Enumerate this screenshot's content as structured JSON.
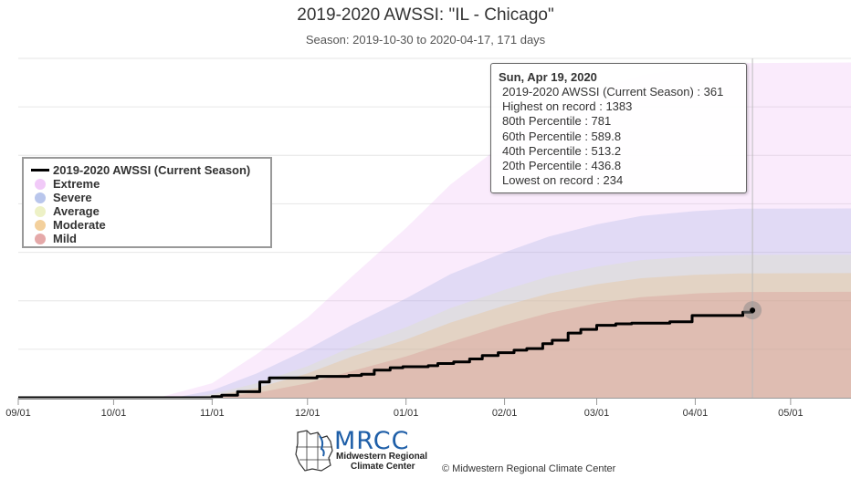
{
  "header": {
    "title": "2019-2020 AWSSI: \"IL - Chicago\"",
    "subtitle": "Season: 2019-10-30 to 2020-04-17, 171 days"
  },
  "legend": {
    "items": [
      {
        "label": "2019-2020 AWSSI (Current Season)",
        "color": "#000000",
        "kind": "line"
      },
      {
        "label": "Extreme",
        "color": "#e7a6f3",
        "kind": "dot"
      },
      {
        "label": "Severe",
        "color": "#8aa0e0",
        "kind": "dot"
      },
      {
        "label": "Average",
        "color": "#e1e8a0",
        "kind": "dot"
      },
      {
        "label": "Moderate",
        "color": "#ebb15a",
        "kind": "dot"
      },
      {
        "label": "Mild",
        "color": "#d37070",
        "kind": "dot"
      }
    ]
  },
  "tooltip": {
    "date": "Sun, Apr 19, 2020",
    "rows": [
      "2019-2020 AWSSI (Current Season) : 361",
      "Highest on record : 1383",
      "80th Percentile : 781",
      "60th Percentile : 589.8",
      "40th Percentile : 513.2",
      "20th Percentile : 436.8",
      "Lowest on record : 234"
    ]
  },
  "logo": {
    "name": "MRCC",
    "line1": "Midwestern Regional",
    "line2": "Climate Center"
  },
  "credit": "© Midwestern Regional Climate Center",
  "chart_data": {
    "type": "area",
    "title": "2019-2020 AWSSI: \"IL - Chicago\"",
    "subtitle": "Season: 2019-10-30 to 2020-04-17, 171 days",
    "x_tick_labels": [
      "09/01",
      "10/01",
      "11/01",
      "12/01",
      "01/01",
      "02/01",
      "03/01",
      "04/01",
      "05/01"
    ],
    "x_tick_dates": [
      "2019-09-01",
      "2019-10-01",
      "2019-11-01",
      "2019-12-01",
      "2020-01-01",
      "2020-02-01",
      "2020-03-01",
      "2020-04-01",
      "2020-05-01"
    ],
    "xlim": [
      "2019-09-01",
      "2020-05-20"
    ],
    "ylim": [
      0,
      1400
    ],
    "y_gridlines": [
      0,
      200,
      400,
      600,
      800,
      1000,
      1200,
      1400
    ],
    "y_tick_labels_visible": false,
    "legend_position": "left",
    "crosshair_date": "2020-04-19",
    "highlight_point": {
      "date": "2020-04-19",
      "value": 361
    },
    "series": [
      {
        "name": "2019-2020 AWSSI (Current Season)",
        "color": "#000000",
        "points": [
          [
            "2019-09-01",
            0
          ],
          [
            "2019-10-30",
            0
          ],
          [
            "2019-11-01",
            5
          ],
          [
            "2019-11-04",
            10
          ],
          [
            "2019-11-07",
            10
          ],
          [
            "2019-11-09",
            25
          ],
          [
            "2019-11-12",
            25
          ],
          [
            "2019-11-16",
            65
          ],
          [
            "2019-11-19",
            82
          ],
          [
            "2019-11-24",
            82
          ],
          [
            "2019-12-04",
            88
          ],
          [
            "2019-12-14",
            92
          ],
          [
            "2019-12-18",
            97
          ],
          [
            "2019-12-22",
            114
          ],
          [
            "2019-12-27",
            124
          ],
          [
            "2019-12-31",
            128
          ],
          [
            "2020-01-08",
            132
          ],
          [
            "2020-01-11",
            141
          ],
          [
            "2020-01-16",
            148
          ],
          [
            "2020-01-21",
            160
          ],
          [
            "2020-01-25",
            174
          ],
          [
            "2020-01-30",
            186
          ],
          [
            "2020-02-04",
            196
          ],
          [
            "2020-02-08",
            203
          ],
          [
            "2020-02-13",
            223
          ],
          [
            "2020-02-16",
            237
          ],
          [
            "2020-02-21",
            267
          ],
          [
            "2020-02-25",
            282
          ],
          [
            "2020-03-01",
            299
          ],
          [
            "2020-03-07",
            305
          ],
          [
            "2020-03-12",
            308
          ],
          [
            "2020-03-24",
            313
          ],
          [
            "2020-03-31",
            339
          ],
          [
            "2020-04-12",
            339
          ],
          [
            "2020-04-16",
            353
          ],
          [
            "2020-04-19",
            361
          ]
        ]
      }
    ],
    "bands": [
      {
        "name": "Extreme",
        "color": "#e7a6f3",
        "upper": [
          [
            "2019-10-15",
            0
          ],
          [
            "2019-11-01",
            60
          ],
          [
            "2019-11-15",
            180
          ],
          [
            "2019-12-01",
            330
          ],
          [
            "2019-12-15",
            500
          ],
          [
            "2020-01-01",
            700
          ],
          [
            "2020-01-15",
            880
          ],
          [
            "2020-02-01",
            1050
          ],
          [
            "2020-02-15",
            1180
          ],
          [
            "2020-03-01",
            1270
          ],
          [
            "2020-03-15",
            1330
          ],
          [
            "2020-04-01",
            1365
          ],
          [
            "2020-04-15",
            1380
          ],
          [
            "2020-05-20",
            1383
          ]
        ]
      },
      {
        "name": "Severe",
        "color": "#8aa0e0",
        "upper": [
          [
            "2019-10-20",
            0
          ],
          [
            "2019-11-01",
            30
          ],
          [
            "2019-11-15",
            100
          ],
          [
            "2019-12-01",
            200
          ],
          [
            "2019-12-15",
            300
          ],
          [
            "2020-01-01",
            410
          ],
          [
            "2020-01-15",
            510
          ],
          [
            "2020-02-01",
            600
          ],
          [
            "2020-02-15",
            665
          ],
          [
            "2020-03-01",
            715
          ],
          [
            "2020-03-15",
            750
          ],
          [
            "2020-04-01",
            770
          ],
          [
            "2020-04-15",
            780
          ],
          [
            "2020-05-20",
            781
          ]
        ]
      },
      {
        "name": "Average",
        "color": "#e1e8a0",
        "upper": [
          [
            "2019-10-25",
            0
          ],
          [
            "2019-11-01",
            15
          ],
          [
            "2019-11-15",
            60
          ],
          [
            "2019-12-01",
            130
          ],
          [
            "2019-12-15",
            210
          ],
          [
            "2020-01-01",
            290
          ],
          [
            "2020-01-15",
            370
          ],
          [
            "2020-02-01",
            445
          ],
          [
            "2020-02-15",
            500
          ],
          [
            "2020-03-01",
            540
          ],
          [
            "2020-03-15",
            568
          ],
          [
            "2020-04-01",
            583
          ],
          [
            "2020-04-15",
            589
          ],
          [
            "2020-05-20",
            590
          ]
        ]
      },
      {
        "name": "Moderate",
        "color": "#ebb15a",
        "upper": [
          [
            "2019-10-28",
            0
          ],
          [
            "2019-11-01",
            8
          ],
          [
            "2019-11-15",
            40
          ],
          [
            "2019-12-01",
            100
          ],
          [
            "2019-12-15",
            170
          ],
          [
            "2020-01-01",
            240
          ],
          [
            "2020-01-15",
            310
          ],
          [
            "2020-02-01",
            380
          ],
          [
            "2020-02-15",
            430
          ],
          [
            "2020-03-01",
            468
          ],
          [
            "2020-03-15",
            493
          ],
          [
            "2020-04-01",
            507
          ],
          [
            "2020-04-15",
            513
          ],
          [
            "2020-05-20",
            514
          ]
        ]
      },
      {
        "name": "Mild",
        "color": "#d37070",
        "upper": [
          [
            "2019-11-01",
            0
          ],
          [
            "2019-11-15",
            20
          ],
          [
            "2019-12-01",
            60
          ],
          [
            "2019-12-15",
            110
          ],
          [
            "2020-01-01",
            170
          ],
          [
            "2020-01-15",
            230
          ],
          [
            "2020-02-01",
            300
          ],
          [
            "2020-02-15",
            350
          ],
          [
            "2020-03-01",
            390
          ],
          [
            "2020-03-15",
            415
          ],
          [
            "2020-04-01",
            430
          ],
          [
            "2020-04-15",
            436
          ],
          [
            "2020-05-20",
            437
          ]
        ]
      }
    ]
  }
}
